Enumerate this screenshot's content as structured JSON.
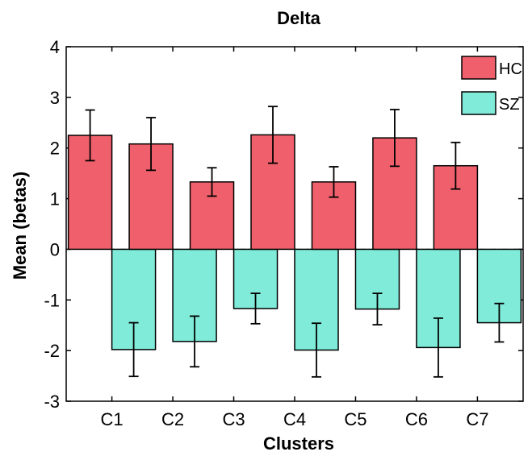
{
  "chart_data": {
    "type": "bar",
    "title": "Delta",
    "xlabel": "Clusters",
    "ylabel": "Mean (betas)",
    "categories": [
      "C1",
      "C2",
      "C3",
      "C4",
      "C5",
      "C6",
      "C7"
    ],
    "ylim": [
      -3,
      4
    ],
    "yticks": [
      -3,
      -2,
      -1,
      0,
      1,
      2,
      3,
      4
    ],
    "grid": false,
    "legend_position": "top-right",
    "zero_line": "dash-dot",
    "series": [
      {
        "name": "HC",
        "color": "#F0606C",
        "values": [
          2.25,
          2.08,
          1.33,
          2.26,
          1.33,
          2.2,
          1.65
        ],
        "error": [
          0.5,
          0.52,
          0.28,
          0.56,
          0.3,
          0.56,
          0.46
        ]
      },
      {
        "name": "SZ",
        "color": "#7FEBD8",
        "values": [
          -1.98,
          -1.82,
          -1.17,
          -1.99,
          -1.18,
          -1.94,
          -1.45
        ],
        "error": [
          0.53,
          0.5,
          0.3,
          0.53,
          0.31,
          0.58,
          0.38
        ]
      }
    ]
  }
}
